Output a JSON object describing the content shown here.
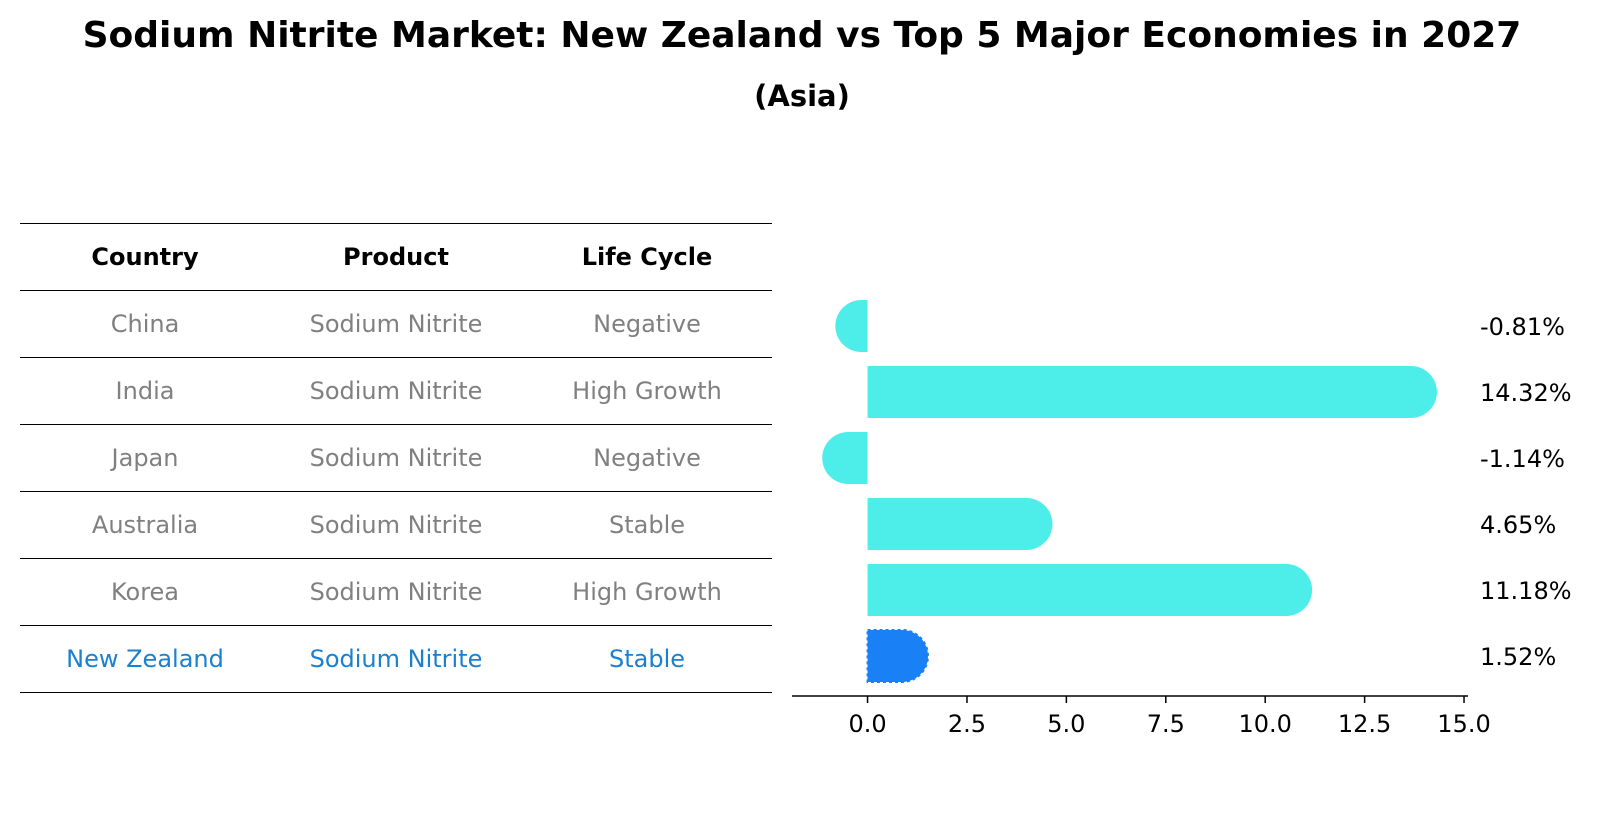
{
  "title": "Sodium Nitrite Market: New Zealand vs Top 5 Major Economies in 2027",
  "subtitle": "(Asia)",
  "table": {
    "headers": [
      "Country",
      "Product",
      "Life Cycle"
    ],
    "rows": [
      {
        "country": "China",
        "product": "Sodium Nitrite",
        "life_cycle": "Negative"
      },
      {
        "country": "India",
        "product": "Sodium Nitrite",
        "life_cycle": "High Growth"
      },
      {
        "country": "Japan",
        "product": "Sodium Nitrite",
        "life_cycle": "Negative"
      },
      {
        "country": "Australia",
        "product": "Sodium Nitrite",
        "life_cycle": "Stable"
      },
      {
        "country": "Korea",
        "product": "Sodium Nitrite",
        "life_cycle": "High Growth"
      },
      {
        "country": "New Zealand",
        "product": "Sodium Nitrite",
        "life_cycle": "Stable"
      }
    ],
    "highlight_color": "#1a80d0",
    "text_color": "#808080"
  },
  "chart_data": {
    "type": "bar",
    "orientation": "horizontal",
    "categories": [
      "China",
      "India",
      "Japan",
      "Australia",
      "Korea",
      "New Zealand"
    ],
    "values": [
      -0.81,
      14.32,
      -1.14,
      4.65,
      11.18,
      1.52
    ],
    "value_labels": [
      "-0.81%",
      "14.32%",
      "-1.14%",
      "4.65%",
      "11.18%",
      "1.52%"
    ],
    "xlim": [
      -1.9,
      15.1
    ],
    "xticks": [
      0.0,
      2.5,
      5.0,
      7.5,
      10.0,
      12.5,
      15.0
    ],
    "xtick_labels": [
      "0.0",
      "2.5",
      "5.0",
      "7.5",
      "10.0",
      "12.5",
      "15.0"
    ],
    "bar_color": "#4deeea",
    "highlight_color": "#1a80f5",
    "highlight_index": 5,
    "grid": false
  }
}
